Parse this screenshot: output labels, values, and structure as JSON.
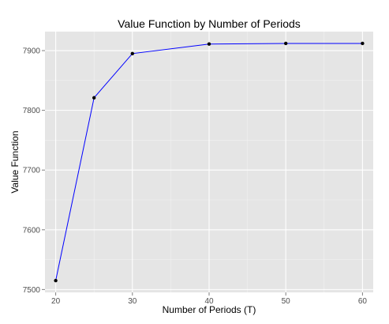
{
  "chart_data": {
    "type": "line",
    "title": "Value Function by Number of Periods",
    "xlabel": "Number of Periods (T)",
    "ylabel": "Value Function",
    "x": [
      20,
      25,
      30,
      40,
      50,
      60
    ],
    "series": [
      {
        "values": [
          7515,
          7821,
          7895,
          7911,
          7912,
          7912
        ]
      }
    ],
    "xlim": [
      18.6,
      61.4
    ],
    "ylim": [
      7495.2,
      7931.8
    ],
    "xticks": [
      20,
      30,
      40,
      50,
      60
    ],
    "yticks": [
      7500,
      7600,
      7700,
      7800,
      7900
    ],
    "xtick_labels": [
      "20",
      "30",
      "40",
      "50",
      "60"
    ],
    "ytick_labels": [
      "7500",
      "7600",
      "7700",
      "7800",
      "7900"
    ],
    "grid": true,
    "colors": {
      "panel_background": "#e5e5e5",
      "grid_major": "#ffffff",
      "grid_minor": "#f2f2f2",
      "line": "#0000ff",
      "point": "#000000"
    }
  }
}
